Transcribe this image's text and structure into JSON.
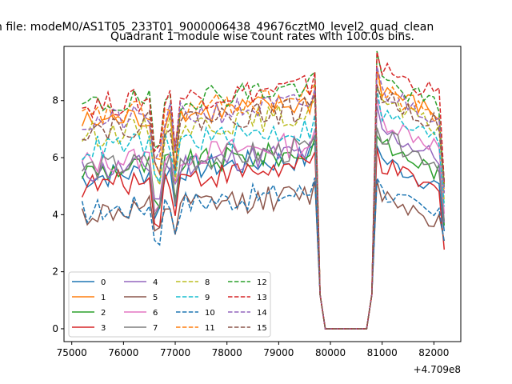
{
  "figure": {
    "suptitle": "n file: modeM0/AS1T05_233T01_9000006438_49676cztM0_level2_quad_clean",
    "x_offset_label": "+4.709e8"
  },
  "chart_data": {
    "type": "line",
    "title": "Quadrant 1 module wise count rates with 100.0s bins.",
    "xlabel": "",
    "ylabel": "",
    "x_offset": 470900000,
    "x_range_relative": [
      74850,
      82520
    ],
    "ylim": [
      -0.45,
      9.9
    ],
    "x_ticks": [
      75000,
      76000,
      77000,
      78000,
      79000,
      80000,
      81000,
      82000
    ],
    "x_tick_labels": [
      "75000",
      "76000",
      "77000",
      "78000",
      "79000",
      "80000",
      "81000",
      "82000"
    ],
    "y_ticks": [
      0,
      2,
      4,
      6,
      8
    ],
    "y_tick_labels": [
      "0",
      "2",
      "4",
      "6",
      "8"
    ],
    "grid": false,
    "legend_position": "lower-left",
    "legend_columns": 4,
    "segments": [
      {
        "x_start": 75200,
        "x_end": 79700,
        "step": 100
      },
      {
        "x_start": 79800,
        "x_end": 80800,
        "step": 100
      },
      {
        "x_start": 80900,
        "x_end": 82200,
        "step": 100
      }
    ],
    "series": [
      {
        "name": "0",
        "color": "#1f77b4",
        "dash": "solid",
        "low": 5.3,
        "pre_dip": 4.1,
        "post_gap": 6.0,
        "end": 3.1
      },
      {
        "name": "1",
        "color": "#ff7f0e",
        "dash": "solid",
        "low": 7.2,
        "pre_dip": 5.8,
        "post_gap": 8.5,
        "end": 4.8
      },
      {
        "name": "2",
        "color": "#2ca02c",
        "dash": "solid",
        "low": 5.5,
        "pre_dip": 4.2,
        "post_gap": 6.5,
        "end": 3.4
      },
      {
        "name": "3",
        "color": "#d62728",
        "dash": "solid",
        "low": 5.0,
        "pre_dip": 4.0,
        "post_gap": 5.8,
        "end": 2.6
      },
      {
        "name": "4",
        "color": "#9467bd",
        "dash": "solid",
        "low": 5.5,
        "pre_dip": 4.6,
        "post_gap": 7.0,
        "end": 3.6
      },
      {
        "name": "5",
        "color": "#8c564b",
        "dash": "solid",
        "low": 4.0,
        "pre_dip": 3.2,
        "post_gap": 4.8,
        "end": 3.0
      },
      {
        "name": "6",
        "color": "#e377c2",
        "dash": "solid",
        "low": 5.8,
        "pre_dip": 4.5,
        "post_gap": 7.4,
        "end": 4.0
      },
      {
        "name": "7",
        "color": "#7f7f7f",
        "dash": "solid",
        "low": 5.6,
        "pre_dip": 4.1,
        "post_gap": 6.8,
        "end": 3.8
      },
      {
        "name": "8",
        "color": "#bcbd22",
        "dash": "dashed",
        "low": 6.8,
        "pre_dip": 5.3,
        "post_gap": 8.0,
        "end": 4.5
      },
      {
        "name": "9",
        "color": "#17becf",
        "dash": "dashed",
        "low": 6.3,
        "pre_dip": 5.0,
        "post_gap": 7.6,
        "end": 4.4
      },
      {
        "name": "10",
        "color": "#1f77b4",
        "dash": "dashed",
        "low": 4.1,
        "pre_dip": 3.3,
        "post_gap": 4.9,
        "end": 3.2
      },
      {
        "name": "11",
        "color": "#ff7f0e",
        "dash": "dashed",
        "low": 7.4,
        "pre_dip": 5.9,
        "post_gap": 8.4,
        "end": 5.0
      },
      {
        "name": "12",
        "color": "#2ca02c",
        "dash": "dashed",
        "low": 7.8,
        "pre_dip": 6.0,
        "post_gap": 8.8,
        "end": 5.2
      },
      {
        "name": "13",
        "color": "#d62728",
        "dash": "dashed",
        "low": 7.8,
        "pre_dip": 6.5,
        "post_gap": 9.2,
        "end": 5.4
      },
      {
        "name": "14",
        "color": "#9467bd",
        "dash": "dashed",
        "low": 7.2,
        "pre_dip": 5.9,
        "post_gap": 8.4,
        "end": 5.1
      },
      {
        "name": "15",
        "color": "#8c564b",
        "dash": "dashed",
        "low": 7.0,
        "pre_dip": 5.6,
        "post_gap": 8.2,
        "end": 4.9
      }
    ]
  }
}
